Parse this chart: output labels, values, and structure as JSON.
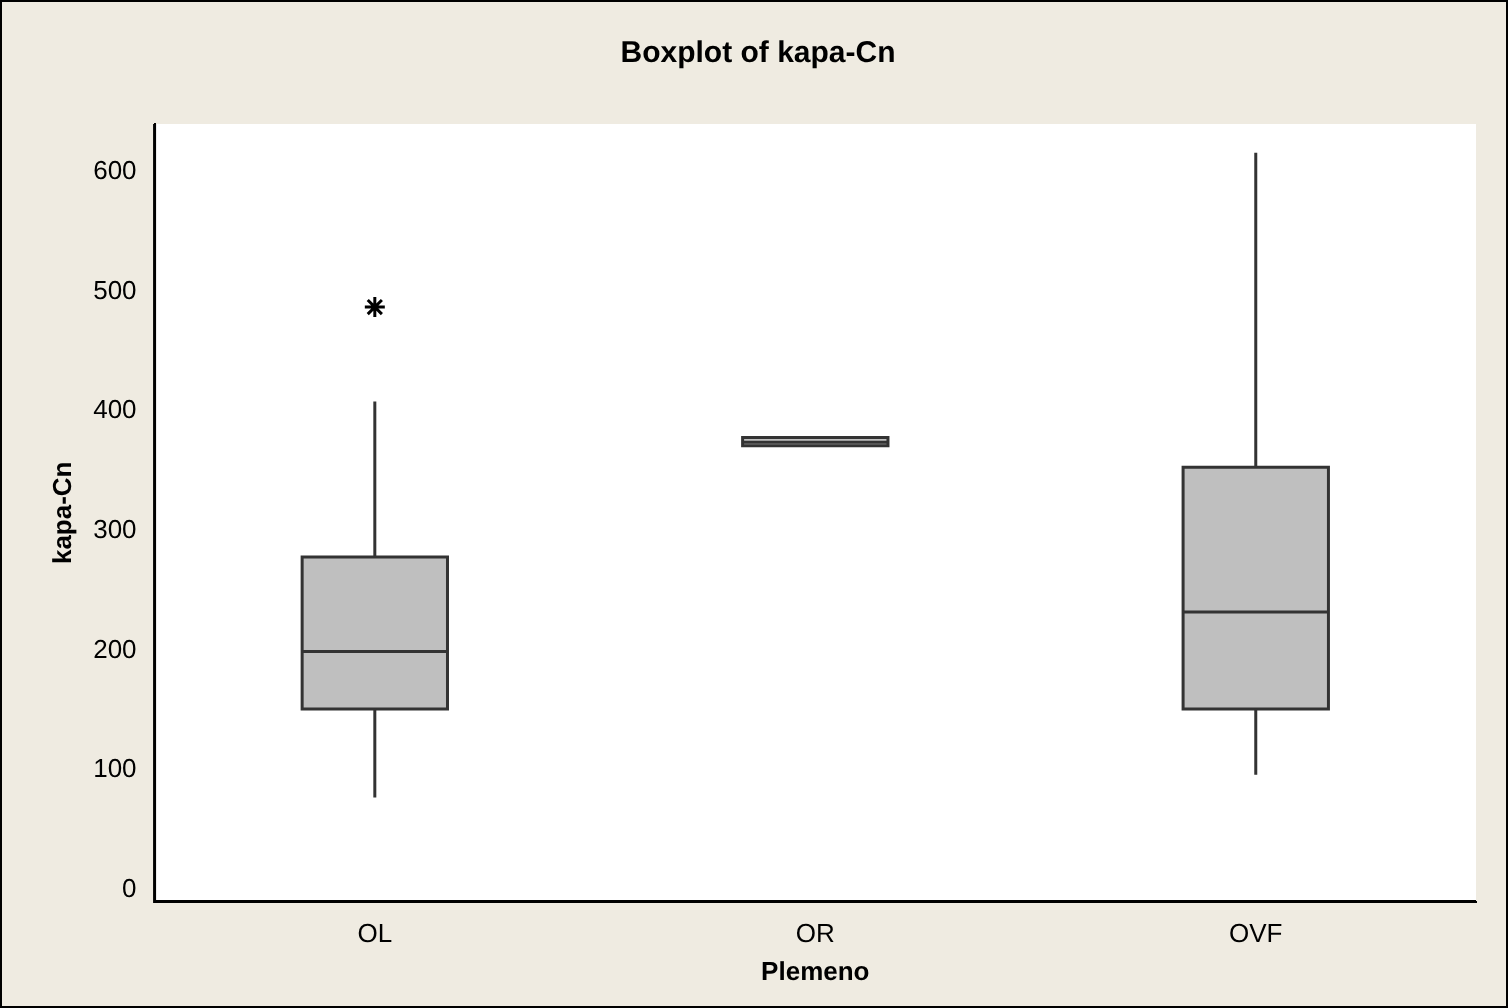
{
  "chart_data": {
    "type": "box",
    "title": "Boxplot of kapa-Cn",
    "xlabel": "Plemeno",
    "ylabel": "kapa-Cn",
    "categories": [
      "OL",
      "OR",
      "OVF"
    ],
    "color": "#bfbfbf",
    "boxes": [
      {
        "low": 77,
        "q1": 151,
        "median": 199,
        "q3": 278,
        "high": 408,
        "outliers": [
          487
        ]
      },
      {
        "low": 371,
        "q1": 371,
        "median": 374,
        "q3": 378,
        "high": 378
      },
      {
        "low": 96,
        "q1": 151,
        "median": 232,
        "q3": 353,
        "high": 616
      }
    ],
    "ylim": [
      -10,
      640
    ],
    "yticks": [
      0,
      100,
      200,
      300,
      400,
      500,
      600
    ],
    "grid": false,
    "legend": false,
    "marker": "star"
  }
}
